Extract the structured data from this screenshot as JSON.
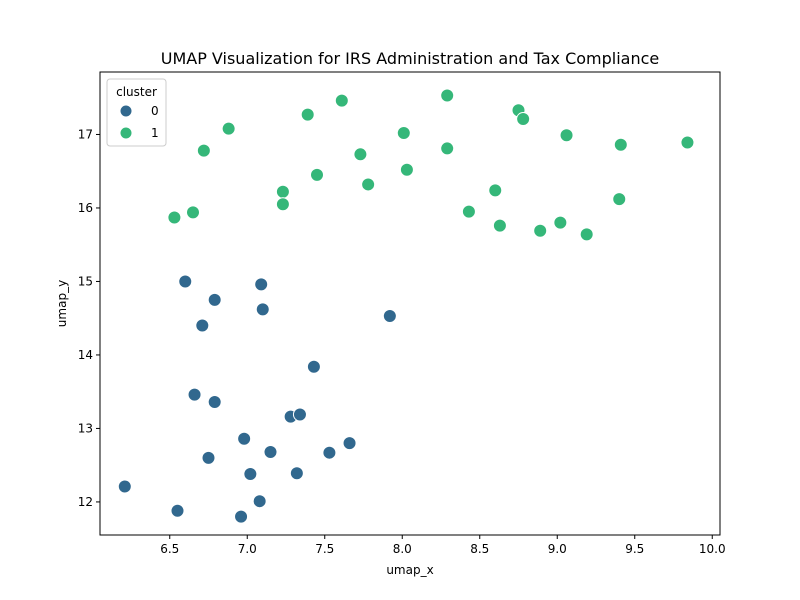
{
  "chart_data": {
    "type": "scatter",
    "title": "UMAP Visualization for IRS Administration and Tax Compliance",
    "xlabel": "umap_x",
    "ylabel": "umap_y",
    "xlim": [
      6.05,
      10.05
    ],
    "ylim": [
      11.55,
      17.85
    ],
    "xticks": [
      6.5,
      7.0,
      7.5,
      8.0,
      8.5,
      9.0,
      9.5,
      10.0
    ],
    "yticks": [
      12,
      13,
      14,
      15,
      16,
      17
    ],
    "xtick_labels": [
      "6.5",
      "7.0",
      "7.5",
      "8.0",
      "8.5",
      "9.0",
      "9.5",
      "10.0"
    ],
    "ytick_labels": [
      "12",
      "13",
      "14",
      "15",
      "16",
      "17"
    ],
    "grid": false,
    "legend": {
      "title": "cluster",
      "location": "upper-left"
    },
    "series": [
      {
        "name": "0",
        "color": "#31688e",
        "points": [
          [
            6.21,
            12.21
          ],
          [
            6.55,
            11.88
          ],
          [
            6.6,
            15.0
          ],
          [
            6.66,
            13.46
          ],
          [
            6.71,
            14.4
          ],
          [
            6.75,
            12.6
          ],
          [
            6.79,
            14.75
          ],
          [
            6.79,
            13.36
          ],
          [
            6.96,
            11.8
          ],
          [
            6.98,
            12.86
          ],
          [
            7.02,
            12.38
          ],
          [
            7.08,
            12.01
          ],
          [
            7.09,
            14.96
          ],
          [
            7.1,
            14.62
          ],
          [
            7.15,
            12.68
          ],
          [
            7.28,
            13.16
          ],
          [
            7.32,
            12.39
          ],
          [
            7.34,
            13.19
          ],
          [
            7.43,
            13.84
          ],
          [
            7.53,
            12.67
          ],
          [
            7.66,
            12.8
          ],
          [
            7.92,
            14.53
          ]
        ]
      },
      {
        "name": "1",
        "color": "#35b779",
        "points": [
          [
            6.53,
            15.87
          ],
          [
            6.65,
            15.94
          ],
          [
            6.72,
            16.78
          ],
          [
            6.88,
            17.08
          ],
          [
            7.23,
            16.22
          ],
          [
            7.23,
            16.05
          ],
          [
            7.39,
            17.27
          ],
          [
            7.45,
            16.45
          ],
          [
            7.61,
            17.46
          ],
          [
            7.73,
            16.73
          ],
          [
            7.78,
            16.32
          ],
          [
            8.01,
            17.02
          ],
          [
            8.03,
            16.52
          ],
          [
            8.29,
            17.53
          ],
          [
            8.29,
            16.81
          ],
          [
            8.43,
            15.95
          ],
          [
            8.6,
            16.24
          ],
          [
            8.63,
            15.76
          ],
          [
            8.75,
            17.33
          ],
          [
            8.78,
            17.21
          ],
          [
            8.89,
            15.69
          ],
          [
            9.02,
            15.8
          ],
          [
            9.06,
            16.99
          ],
          [
            9.19,
            15.64
          ],
          [
            9.4,
            16.12
          ],
          [
            9.41,
            16.86
          ],
          [
            9.84,
            16.89
          ]
        ]
      }
    ]
  }
}
